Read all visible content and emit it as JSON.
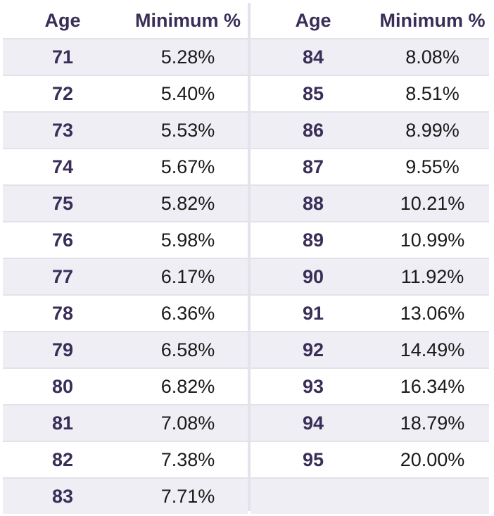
{
  "headers": {
    "age": "Age",
    "min": "Minimum %"
  },
  "left_rows": [
    {
      "age": "71",
      "pct": "5.28%"
    },
    {
      "age": "72",
      "pct": "5.40%"
    },
    {
      "age": "73",
      "pct": "5.53%"
    },
    {
      "age": "74",
      "pct": "5.67%"
    },
    {
      "age": "75",
      "pct": "5.82%"
    },
    {
      "age": "76",
      "pct": "5.98%"
    },
    {
      "age": "77",
      "pct": "6.17%"
    },
    {
      "age": "78",
      "pct": "6.36%"
    },
    {
      "age": "79",
      "pct": "6.58%"
    },
    {
      "age": "80",
      "pct": "6.82%"
    },
    {
      "age": "81",
      "pct": "7.08%"
    },
    {
      "age": "82",
      "pct": "7.38%"
    },
    {
      "age": "83",
      "pct": "7.71%"
    }
  ],
  "right_rows": [
    {
      "age": "84",
      "pct": "8.08%"
    },
    {
      "age": "85",
      "pct": "8.51%"
    },
    {
      "age": "86",
      "pct": "8.99%"
    },
    {
      "age": "87",
      "pct": "9.55%"
    },
    {
      "age": "88",
      "pct": "10.21%"
    },
    {
      "age": "89",
      "pct": "10.99%"
    },
    {
      "age": "90",
      "pct": "11.92%"
    },
    {
      "age": "91",
      "pct": "13.06%"
    },
    {
      "age": "92",
      "pct": "14.49%"
    },
    {
      "age": "93",
      "pct": "16.34%"
    },
    {
      "age": "94",
      "pct": "18.79%"
    },
    {
      "age": "95",
      "pct": "20.00%"
    },
    {
      "age": "",
      "pct": ""
    }
  ]
}
